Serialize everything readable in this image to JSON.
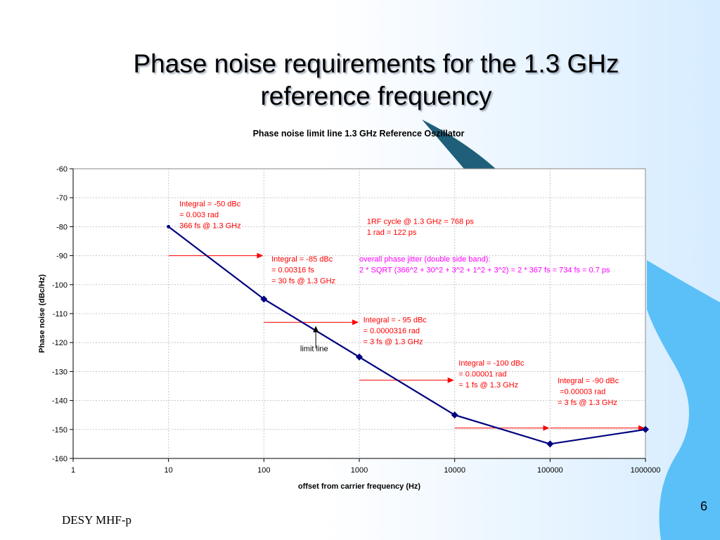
{
  "slide": {
    "title": "Phase noise requirements for the 1.3 GHz reference frequency",
    "footer": "DESY MHF-p",
    "page_number": "6"
  },
  "colors": {
    "line": "#000080",
    "annotation_red": "#ff0000",
    "annotation_magenta": "#ff00ff",
    "arrow_red": "#ff0000",
    "deco_blue": "#5bc0f8",
    "deco_dark": "#1f5f7a"
  },
  "chart_data": {
    "type": "line",
    "title": "Phase noise limit line 1.3 GHz Reference Oszillator",
    "xlabel": "offset from carrier frequency (Hz)",
    "ylabel": "Phase noise (dBc/Hz)",
    "x_scale": "log",
    "xlim": [
      1,
      1000000
    ],
    "ylim": [
      -160,
      -60
    ],
    "x_ticks": [
      "1",
      "10",
      "100",
      "1000",
      "10000",
      "100000",
      "1000000"
    ],
    "y_ticks": [
      "-60",
      "-70",
      "-80",
      "-90",
      "-100",
      "-110",
      "-120",
      "-130",
      "-140",
      "-150",
      "-160"
    ],
    "grid": true,
    "series": [
      {
        "x": [
          10,
          100,
          1000,
          10000,
          100000,
          1000000
        ],
        "y": [
          -80,
          -105,
          -125,
          -145,
          -155,
          -150
        ]
      }
    ],
    "annotations": [
      {
        "id": "ann-integral-50",
        "color": "red",
        "x": 13,
        "y": -73,
        "lines": [
          "Integral = -50 dBc",
          "= 0.003 rad",
          "366 fs @ 1.3 GHz"
        ]
      },
      {
        "id": "ann-rf-cycle",
        "color": "red",
        "x": 1200,
        "y": -79,
        "lines": [
          "1RF cycle @ 1.3 GHz = 768 ps",
          "1 rad = 122 ps"
        ]
      },
      {
        "id": "ann-integral-85",
        "color": "red",
        "x": 120,
        "y": -92,
        "lines": [
          "Integral = -85 dBc",
          "= 0.00316 fs",
          "= 30 fs @ 1.3 GHz"
        ]
      },
      {
        "id": "ann-overall-jitter",
        "color": "magenta",
        "x": 1000,
        "y": -92,
        "lines": [
          "overall phase jitter (double side band):",
          "2 * SQRT (366^2 + 30^2 + 3^2 + 1^2 + 3^2) = 2 * 367 fs  = 734 fs = 0.7 ps"
        ]
      },
      {
        "id": "ann-integral-95",
        "color": "red",
        "x": 1100,
        "y": -113,
        "lines": [
          "Integral = - 95 dBc",
          "= 0.0000316 rad",
          "= 3 fs @ 1.3 GHz"
        ]
      },
      {
        "id": "ann-integral-100",
        "color": "red",
        "x": 11000,
        "y": -128,
        "lines": [
          "Integral = -100 dBc",
          "= 0.00001 rad",
          "= 1 fs @ 1.3 GHz"
        ]
      },
      {
        "id": "ann-integral-90",
        "color": "red",
        "x": 120000,
        "y": -134,
        "lines": [
          "Integral = -90 dBc",
          " =0.00003 rad",
          "= 3 fs @ 1.3 GHz"
        ]
      },
      {
        "id": "ann-limit-line",
        "color": "black",
        "x": 240,
        "y": -123,
        "lines": [
          "limit line"
        ]
      }
    ],
    "range_arrows": [
      {
        "from": 10,
        "to": 100,
        "y": -90
      },
      {
        "from": 100,
        "to": 1000,
        "y": -113
      },
      {
        "from": 1000,
        "to": 10000,
        "y": -133
      },
      {
        "from": 10000,
        "to": 100000,
        "y": -149.5
      },
      {
        "from": 100000,
        "to": 1000000,
        "y": -149.5
      }
    ],
    "pointer_arrow": {
      "x": 350,
      "y_from": -122,
      "y_to": -114
    }
  }
}
